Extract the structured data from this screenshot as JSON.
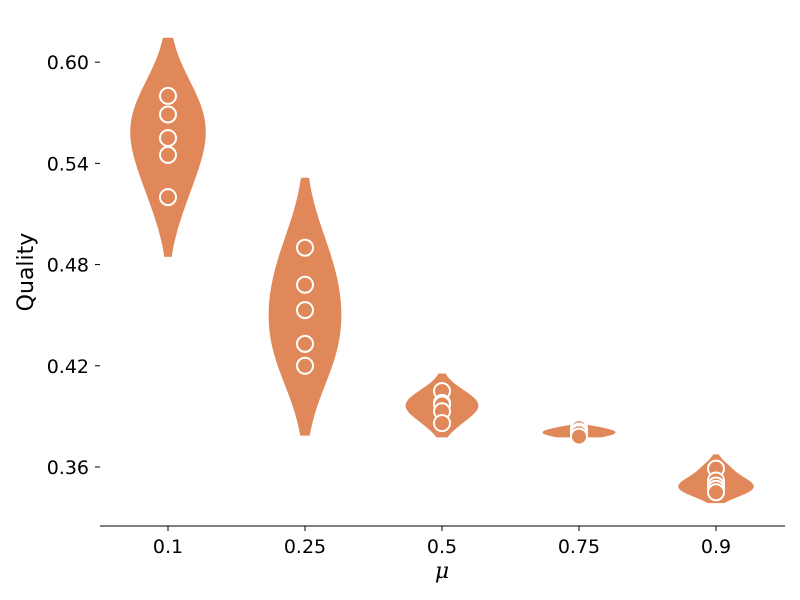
{
  "chart_data": {
    "type": "violin",
    "xlabel": "μ",
    "ylabel": "Quality",
    "ylim": [
      0.325,
      0.625
    ],
    "y_ticks": [
      0.36,
      0.42,
      0.48,
      0.54,
      0.6
    ],
    "y_tick_labels": [
      "0.36",
      "0.42",
      "0.48",
      "0.54",
      "0.60"
    ],
    "categories": [
      "0.1",
      "0.25",
      "0.5",
      "0.75",
      "0.9"
    ],
    "violin_color": "#E0885A",
    "point_edge_color": "#ffffff",
    "groups": [
      {
        "category": "0.1",
        "points": [
          0.58,
          0.569,
          0.555,
          0.545,
          0.52
        ],
        "range": [
          0.485,
          0.614
        ],
        "peak": 0.559,
        "half_width": 0.27
      },
      {
        "category": "0.25",
        "points": [
          0.49,
          0.468,
          0.453,
          0.433,
          0.42
        ],
        "range": [
          0.379,
          0.531
        ],
        "peak": 0.45,
        "half_width": 0.26
      },
      {
        "category": "0.5",
        "points": [
          0.405,
          0.398,
          0.397,
          0.393,
          0.386
        ],
        "range": [
          0.378,
          0.415
        ],
        "peak": 0.397,
        "half_width": 0.26
      },
      {
        "category": "0.75",
        "points": [
          0.383,
          0.381,
          0.38,
          0.378
        ],
        "range": [
          0.378,
          0.386
        ],
        "peak": 0.382,
        "half_width": 0.26
      },
      {
        "category": "0.9",
        "points": [
          0.359,
          0.352,
          0.349,
          0.347,
          0.345
        ],
        "range": [
          0.339,
          0.367
        ],
        "peak": 0.349,
        "half_width": 0.27
      }
    ],
    "spines": {
      "left": false,
      "right": false,
      "top": false,
      "bottom": true
    },
    "grid": false,
    "legend": false
  }
}
